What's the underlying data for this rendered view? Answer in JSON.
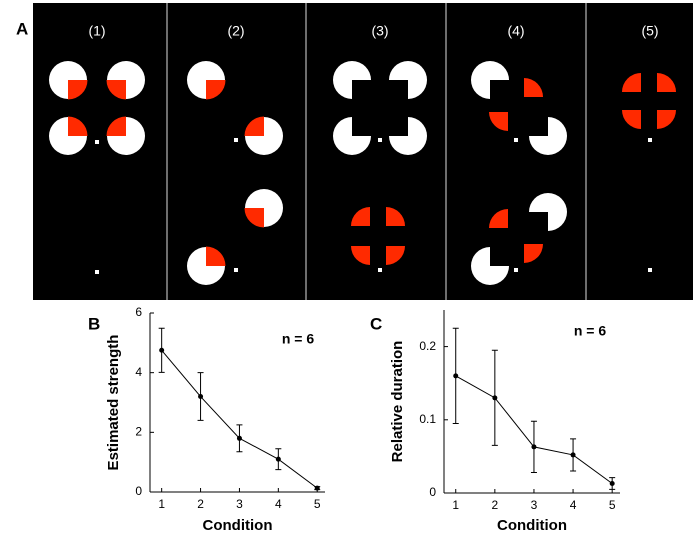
{
  "panel_labels": [
    "A",
    "B",
    "C"
  ],
  "stimuli": {
    "labels": [
      "(1)",
      "(2)",
      "(3)",
      "(4)",
      "(5)"
    ]
  },
  "chart_data": [
    {
      "type": "line",
      "y_label": "Estimated strength",
      "x_label": "Condition",
      "annotation": "n = 6",
      "x": [
        1,
        2,
        3,
        4,
        5
      ],
      "series": [
        {
          "color": "#000000",
          "values": [
            4.75,
            3.2,
            1.8,
            1.1,
            0.13
          ],
          "errors": [
            0.74,
            0.8,
            0.45,
            0.35,
            0.05
          ]
        }
      ],
      "xlim": [
        0.7,
        5.2
      ],
      "ylim": [
        0,
        6
      ],
      "xticks": [
        1,
        2,
        3,
        4,
        5
      ],
      "yticks": [
        0,
        2,
        4,
        6
      ]
    },
    {
      "type": "line",
      "y_label": "Relative duration",
      "x_label": "Condition",
      "annotation": "n = 6",
      "x": [
        1,
        2,
        3,
        4,
        5
      ],
      "series": [
        {
          "color": "#000000",
          "values": [
            0.16,
            0.13,
            0.063,
            0.052,
            0.013
          ],
          "errors": [
            0.065,
            0.065,
            0.035,
            0.022,
            0.008
          ]
        }
      ],
      "xlim": [
        0.7,
        5.2
      ],
      "ylim": [
        0,
        0.25
      ],
      "xticks": [
        1,
        2,
        3,
        4,
        5
      ],
      "yticks": [
        0,
        0.1,
        0.2
      ]
    }
  ]
}
